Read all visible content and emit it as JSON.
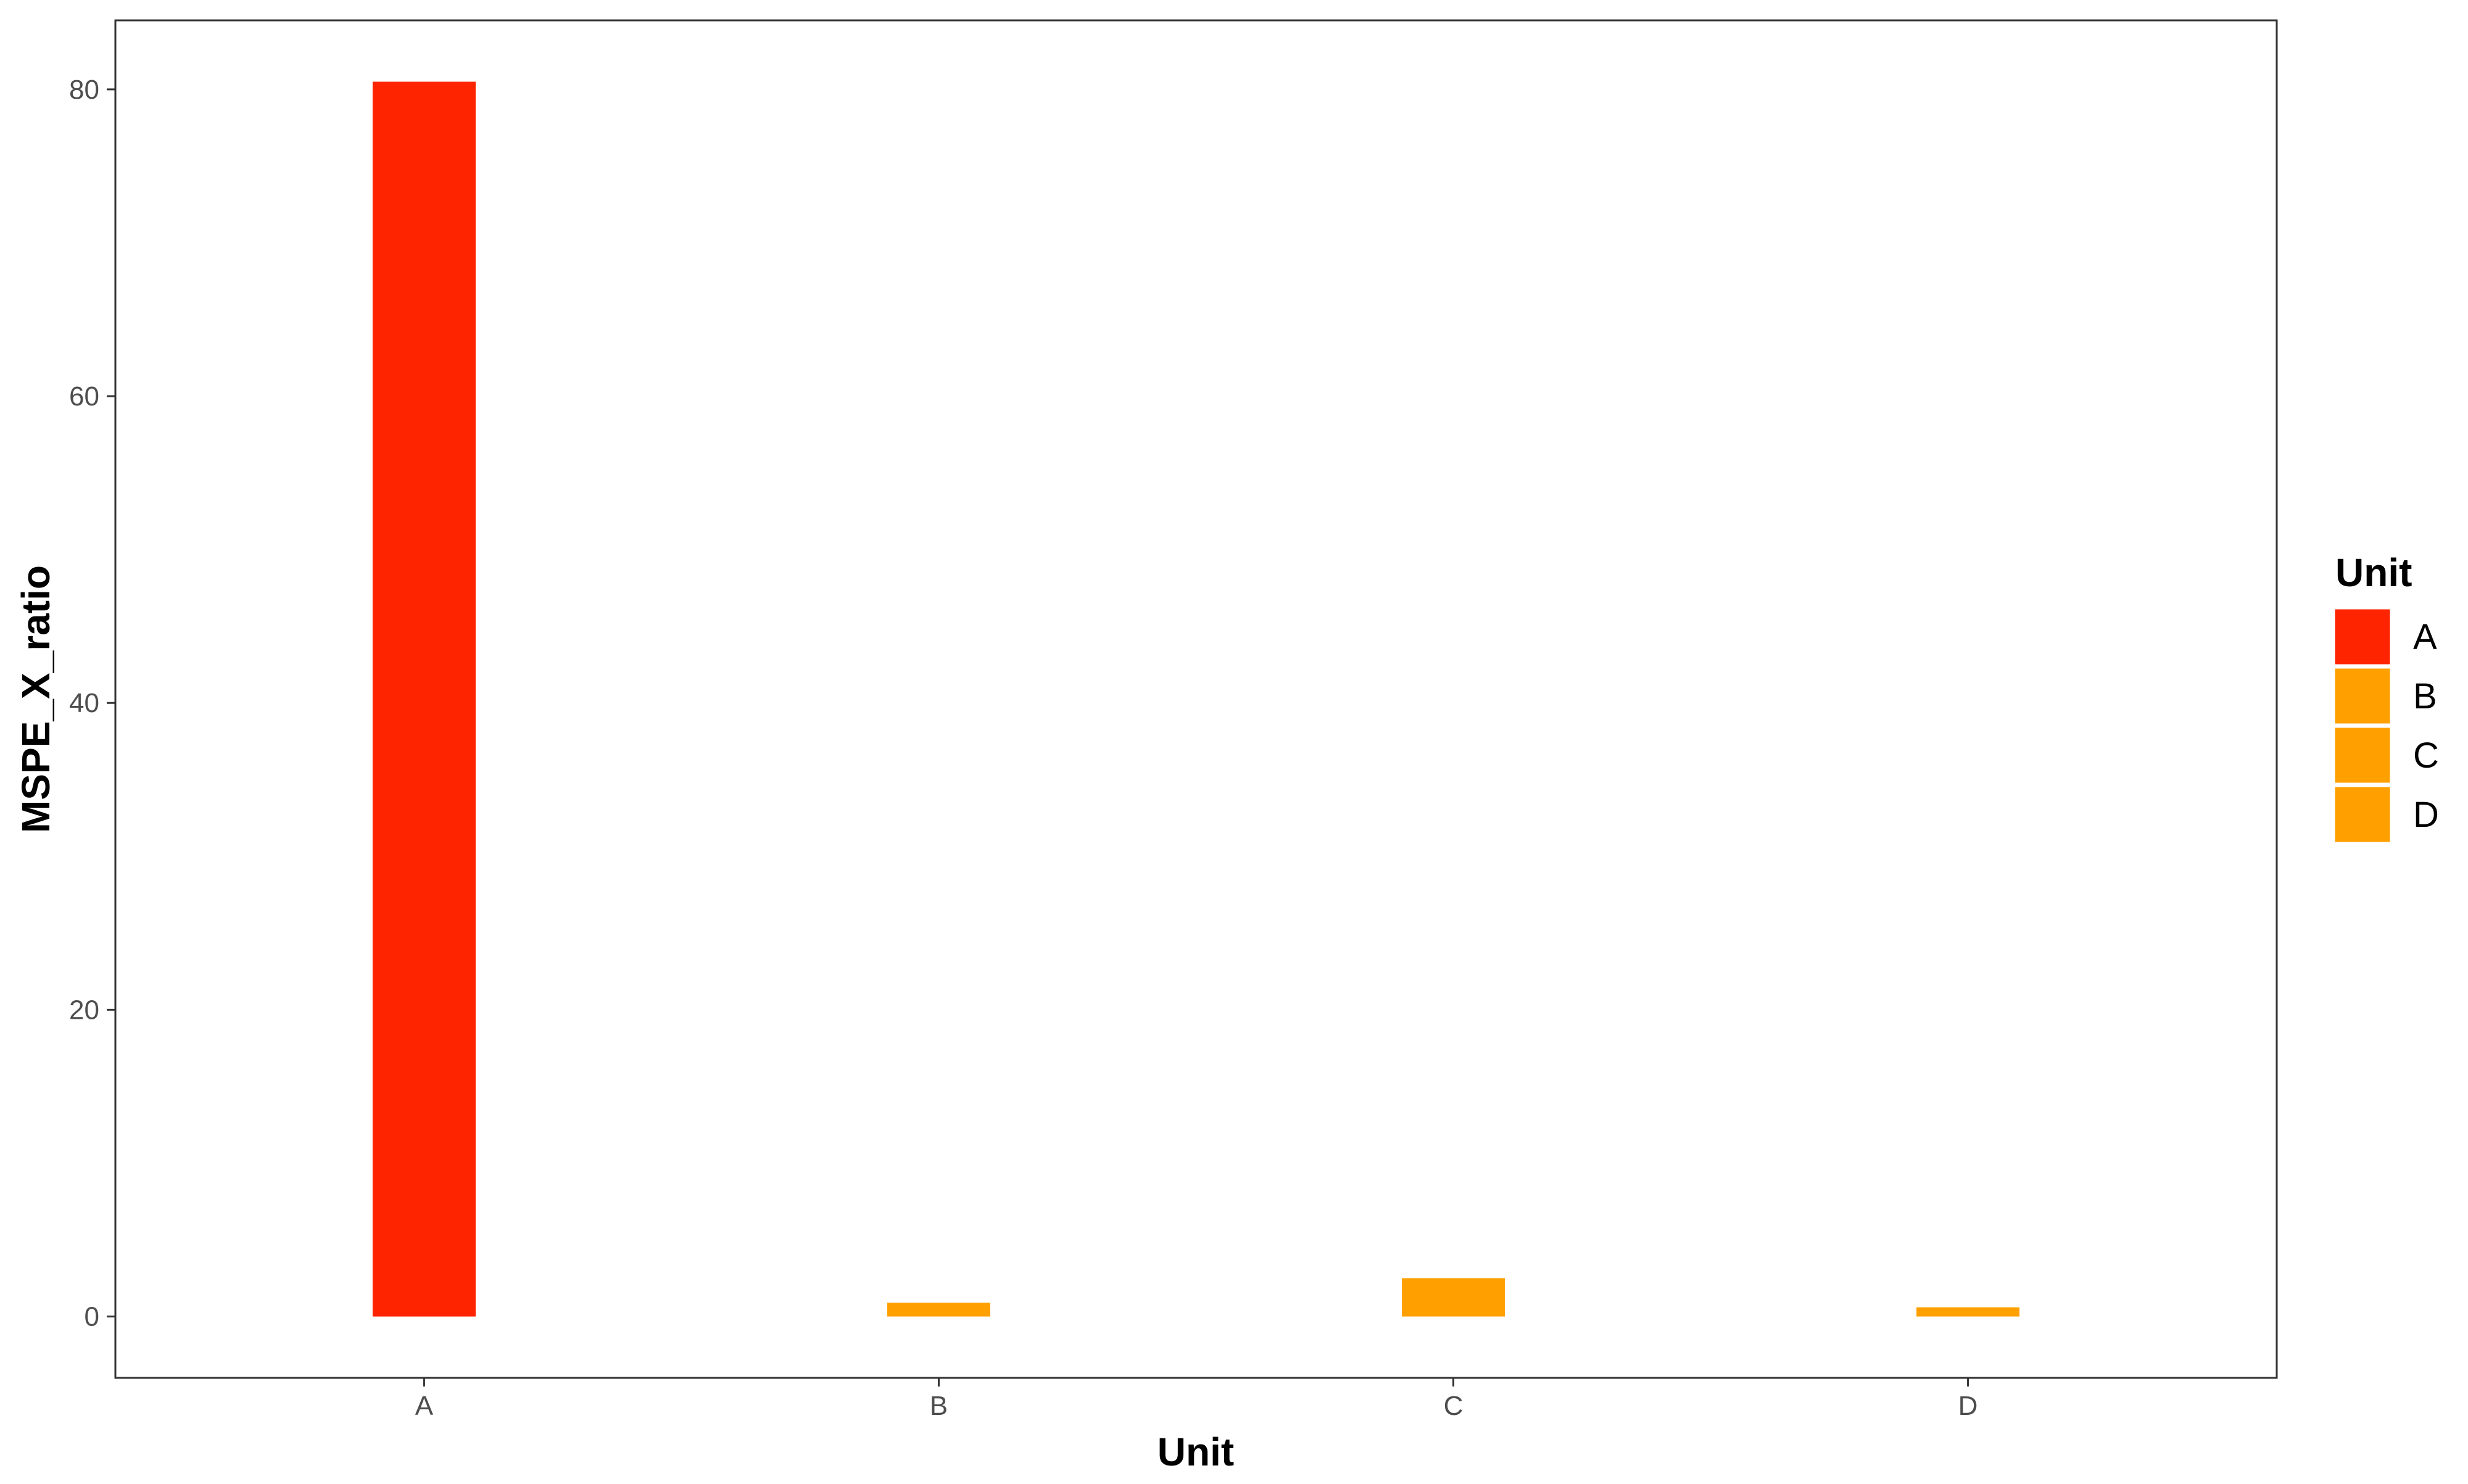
{
  "chart_data": {
    "type": "bar",
    "categories": [
      "A",
      "B",
      "C",
      "D"
    ],
    "values": [
      80.5,
      0.9,
      2.5,
      0.6
    ],
    "xlabel": "Unit",
    "ylabel": "MSPE_X_ratio",
    "ylim": [
      -4,
      84.5
    ],
    "yticks": [
      0,
      20,
      40,
      60,
      80
    ],
    "grid": false,
    "legend": {
      "title": "Unit",
      "placement": "right",
      "entries": [
        {
          "label": "A",
          "color": "#FF2400"
        },
        {
          "label": "B",
          "color": "#FFA000"
        },
        {
          "label": "C",
          "color": "#FFA000"
        },
        {
          "label": "D",
          "color": "#FFA000"
        }
      ]
    },
    "colors": [
      "#FF2400",
      "#FFA000",
      "#FFA000",
      "#FFA000"
    ]
  }
}
